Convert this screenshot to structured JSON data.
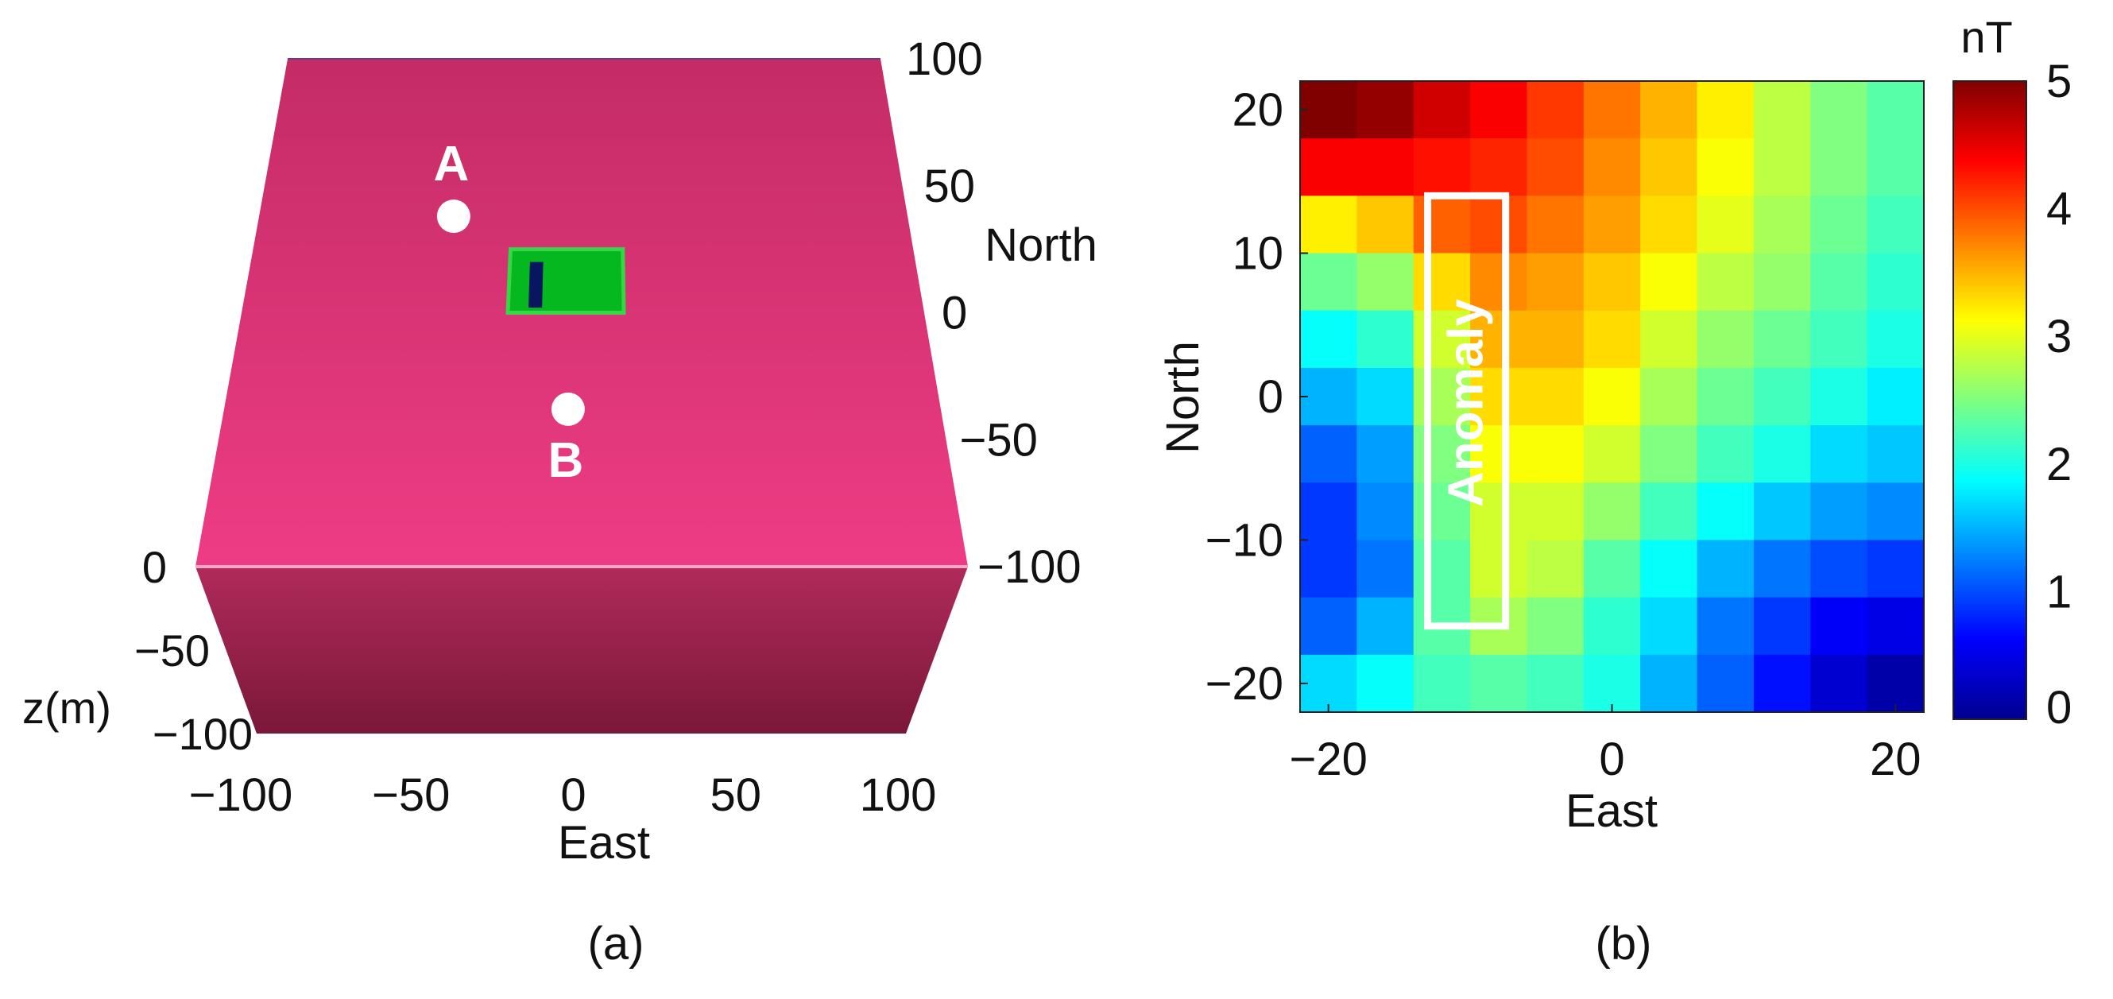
{
  "panels": {
    "a": {
      "caption": "(a)"
    },
    "b": {
      "caption": "(b)"
    }
  },
  "colors": {
    "block_top_back": "#c42c66",
    "block_top_front": "#ee3c84",
    "block_front_top": "#b02a5a",
    "block_front_bottom": "#7a1838",
    "top_edge_highlight": "#f7a6c9",
    "anomaly_green": "#06b820",
    "anomaly_green_edge": "#36d646",
    "anomaly_dark": "#081660",
    "marker": "#ffffff",
    "anomaly_box": "#ffffff"
  },
  "chart_data": [
    {
      "type": "3d-model",
      "xlabel": "East",
      "ylabel": "North",
      "zlabel": "z(m)",
      "x_ticks": [
        "−100",
        "−50",
        "0",
        "50",
        "100"
      ],
      "y_ticks": [
        "100",
        "50",
        "0",
        "−50",
        "−100"
      ],
      "z_ticks": [
        "0",
        "−50",
        "−100"
      ],
      "xlim": [
        -100,
        100
      ],
      "ylim": [
        -100,
        100
      ],
      "zlim": [
        -100,
        0
      ],
      "anomaly_body": {
        "east": [
          -22,
          12
        ],
        "north": [
          0,
          25
        ]
      },
      "anomaly_core": {
        "east": [
          -16,
          -12
        ],
        "north": [
          2,
          20
        ]
      },
      "markers": [
        {
          "label": "A",
          "east": -40,
          "north": 38
        },
        {
          "label": "B",
          "east": -4,
          "north": -38
        }
      ]
    },
    {
      "type": "heatmap",
      "xlabel": "East",
      "ylabel": "North",
      "colorbar_label": "nT",
      "x_ticks": [
        "−20",
        "0",
        "20"
      ],
      "x_tick_values": [
        -20,
        0,
        20
      ],
      "y_ticks": [
        "20",
        "10",
        "0",
        "−10",
        "−20"
      ],
      "y_tick_values": [
        20,
        10,
        0,
        -10,
        -20
      ],
      "colorbar_ticks": [
        "5",
        "4",
        "3",
        "2",
        "1",
        "0"
      ],
      "colorbar_tick_values": [
        5,
        4,
        3,
        2,
        1,
        0
      ],
      "xlim": [
        -22,
        22
      ],
      "ylim": [
        -22,
        22
      ],
      "clim": [
        0,
        5
      ],
      "grid_size": 11,
      "values": [
        [
          5.0,
          4.9,
          4.6,
          4.4,
          4.1,
          3.8,
          3.5,
          3.2,
          2.8,
          2.5,
          2.3
        ],
        [
          4.4,
          4.4,
          4.3,
          4.2,
          4.0,
          3.7,
          3.4,
          3.1,
          2.8,
          2.5,
          2.3
        ],
        [
          3.2,
          3.4,
          3.9,
          4.0,
          3.8,
          3.6,
          3.3,
          3.0,
          2.7,
          2.4,
          2.2
        ],
        [
          2.4,
          2.6,
          3.3,
          3.7,
          3.6,
          3.4,
          3.1,
          2.8,
          2.6,
          2.3,
          2.1
        ],
        [
          1.9,
          2.1,
          2.9,
          3.5,
          3.5,
          3.3,
          2.9,
          2.6,
          2.4,
          2.2,
          2.0
        ],
        [
          1.5,
          1.7,
          2.7,
          3.3,
          3.3,
          3.1,
          2.7,
          2.4,
          2.2,
          2.0,
          1.8
        ],
        [
          1.1,
          1.4,
          2.5,
          3.1,
          3.1,
          2.9,
          2.5,
          2.2,
          2.0,
          1.7,
          1.6
        ],
        [
          0.9,
          1.3,
          2.4,
          2.9,
          2.9,
          2.6,
          2.2,
          1.9,
          1.6,
          1.4,
          1.3
        ],
        [
          0.9,
          1.2,
          2.3,
          2.9,
          2.8,
          2.3,
          1.9,
          1.5,
          1.2,
          1.0,
          0.9
        ],
        [
          1.1,
          1.5,
          2.3,
          2.7,
          2.5,
          2.1,
          1.7,
          1.2,
          0.9,
          0.6,
          0.5
        ],
        [
          1.7,
          1.9,
          2.2,
          2.3,
          2.2,
          2.0,
          1.5,
          1.1,
          0.7,
          0.4,
          0.2
        ]
      ],
      "annotation": {
        "text": "Anomaly",
        "east": [
          -13,
          -7.5
        ],
        "north": [
          -16,
          14
        ]
      }
    }
  ]
}
